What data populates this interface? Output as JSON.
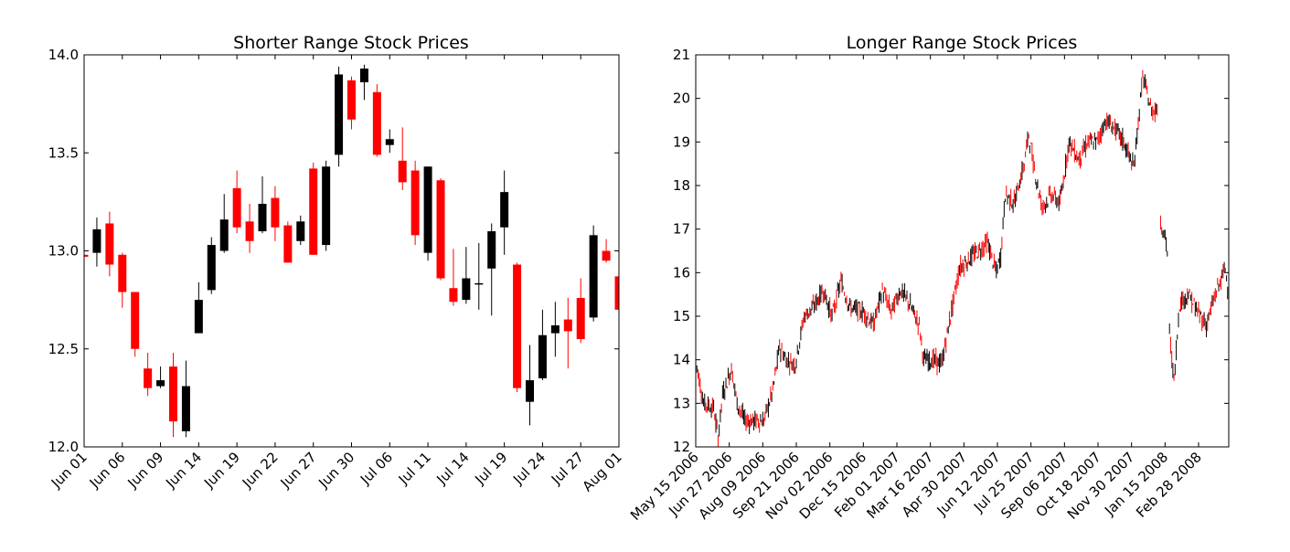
{
  "chart_data": [
    {
      "type": "candlestick",
      "title": "Shorter Range Stock Prices",
      "xlabel": "",
      "ylabel": "",
      "ylim": [
        12.0,
        14.0
      ],
      "xlim": [
        0,
        42
      ],
      "yticks": [
        "12.0",
        "12.5",
        "13.0",
        "13.5",
        "14.0"
      ],
      "ytick_values": [
        12.0,
        12.5,
        13.0,
        13.5,
        14.0
      ],
      "xticks": [
        "Jun 01",
        "Jun 06",
        "Jun 09",
        "Jun 14",
        "Jun 19",
        "Jun 22",
        "Jun 27",
        "Jun 30",
        "Jul 06",
        "Jul 11",
        "Jul 14",
        "Jul 19",
        "Jul 24",
        "Jul 27",
        "Aug 01"
      ],
      "xtick_values": [
        0,
        3,
        6,
        9,
        12,
        15,
        18,
        21,
        24,
        27,
        30,
        33,
        36,
        39,
        42
      ],
      "colors": {
        "up": "#000000",
        "down": "#ff0000"
      },
      "ohlc": [
        [
          12.98,
          12.99,
          12.97,
          12.97
        ],
        [
          12.99,
          13.17,
          12.92,
          13.11
        ],
        [
          13.14,
          13.2,
          12.87,
          12.93
        ],
        [
          12.98,
          12.99,
          12.71,
          12.79
        ],
        [
          12.79,
          12.79,
          12.46,
          12.5
        ],
        [
          12.4,
          12.48,
          12.26,
          12.3
        ],
        [
          12.31,
          12.41,
          12.3,
          12.34
        ],
        [
          12.41,
          12.48,
          12.05,
          12.13
        ],
        [
          12.08,
          12.44,
          12.05,
          12.31
        ],
        [
          12.58,
          12.84,
          12.58,
          12.75
        ],
        [
          12.8,
          13.07,
          12.78,
          13.03
        ],
        [
          13.0,
          13.29,
          12.99,
          13.16
        ],
        [
          13.32,
          13.41,
          13.09,
          13.12
        ],
        [
          13.15,
          13.24,
          12.99,
          13.05
        ],
        [
          13.1,
          13.38,
          13.09,
          13.24
        ],
        [
          13.27,
          13.33,
          13.05,
          13.12
        ],
        [
          13.13,
          13.15,
          12.94,
          12.94
        ],
        [
          13.05,
          13.18,
          13.03,
          13.15
        ],
        [
          13.42,
          13.45,
          12.98,
          12.98
        ],
        [
          13.03,
          13.46,
          13.0,
          13.43
        ],
        [
          13.49,
          13.94,
          13.43,
          13.9
        ],
        [
          13.87,
          13.89,
          13.62,
          13.67
        ],
        [
          13.86,
          13.95,
          13.77,
          13.93
        ],
        [
          13.81,
          13.85,
          13.48,
          13.49
        ],
        [
          13.54,
          13.62,
          13.5,
          13.57
        ],
        [
          13.46,
          13.63,
          13.31,
          13.35
        ],
        [
          13.41,
          13.46,
          13.03,
          13.08
        ],
        [
          12.99,
          13.43,
          12.95,
          13.43
        ],
        [
          13.36,
          13.37,
          12.85,
          12.86
        ],
        [
          12.81,
          13.01,
          12.72,
          12.74
        ],
        [
          12.75,
          13.02,
          12.73,
          12.86
        ],
        [
          12.83,
          13.04,
          12.7,
          12.835
        ],
        [
          12.91,
          13.14,
          12.67,
          13.1
        ],
        [
          13.12,
          13.41,
          12.98,
          13.3
        ],
        [
          12.93,
          12.94,
          12.28,
          12.3
        ],
        [
          12.23,
          12.52,
          12.11,
          12.34
        ],
        [
          12.35,
          12.7,
          12.34,
          12.57
        ],
        [
          12.58,
          12.74,
          12.46,
          12.62
        ],
        [
          12.65,
          12.76,
          12.4,
          12.59
        ],
        [
          12.76,
          12.86,
          12.53,
          12.55
        ],
        [
          12.66,
          13.13,
          12.64,
          13.08
        ],
        [
          13.0,
          13.06,
          12.94,
          12.95
        ],
        [
          12.87,
          12.9,
          12.7,
          12.7
        ]
      ]
    },
    {
      "type": "candlestick",
      "title": "Longer Range Stock Prices",
      "xlabel": "",
      "ylabel": "",
      "ylim": [
        12,
        21
      ],
      "xlim": [
        0,
        477
      ],
      "yticks": [
        "12",
        "13",
        "14",
        "15",
        "16",
        "17",
        "18",
        "19",
        "20",
        "21"
      ],
      "ytick_values": [
        12,
        13,
        14,
        15,
        16,
        17,
        18,
        19,
        20,
        21
      ],
      "xticks": [
        "May 15 2006",
        "Jun 27 2006",
        "Aug 09 2006",
        "Sep 21 2006",
        "Nov 02 2006",
        "Dec 15 2006",
        "Feb 01 2007",
        "Mar 16 2007",
        "Apr 30 2007",
        "Jun 12 2007",
        "Jul 25 2007",
        "Sep 06 2007",
        "Oct 18 2007",
        "Nov 30 2007",
        "Jan 15 2008",
        "Feb 28 2008"
      ],
      "xtick_values": [
        0,
        30,
        60,
        90,
        120,
        150,
        180,
        210,
        240,
        270,
        300,
        330,
        360,
        390,
        420,
        450
      ],
      "colors": {
        "up": "#000000",
        "down": "#ff0000"
      },
      "close_series": [
        [
          0,
          14.0
        ],
        [
          7,
          13.0
        ],
        [
          16,
          12.9
        ],
        [
          20,
          12.2
        ],
        [
          24,
          13.2
        ],
        [
          32,
          13.8
        ],
        [
          37,
          13.0
        ],
        [
          44,
          12.6
        ],
        [
          52,
          12.6
        ],
        [
          61,
          12.6
        ],
        [
          69,
          13.3
        ],
        [
          75,
          14.3
        ],
        [
          81,
          14.0
        ],
        [
          89,
          13.9
        ],
        [
          97,
          15.0
        ],
        [
          105,
          15.2
        ],
        [
          114,
          15.6
        ],
        [
          122,
          15.0
        ],
        [
          130,
          15.8
        ],
        [
          138,
          15.2
        ],
        [
          150,
          15.1
        ],
        [
          159,
          14.8
        ],
        [
          167,
          15.6
        ],
        [
          175,
          15.1
        ],
        [
          183,
          15.6
        ],
        [
          191,
          15.3
        ],
        [
          200,
          14.8
        ],
        [
          204,
          14.0
        ],
        [
          212,
          14.0
        ],
        [
          220,
          13.9
        ],
        [
          228,
          15.0
        ],
        [
          236,
          16.1
        ],
        [
          244,
          16.3
        ],
        [
          253,
          16.5
        ],
        [
          261,
          16.7
        ],
        [
          269,
          16.0
        ],
        [
          273,
          16.4
        ],
        [
          277,
          17.8
        ],
        [
          285,
          17.6
        ],
        [
          294,
          18.5
        ],
        [
          298,
          19.2
        ],
        [
          302,
          18.5
        ],
        [
          310,
          17.5
        ],
        [
          318,
          17.8
        ],
        [
          326,
          17.6
        ],
        [
          334,
          19.0
        ],
        [
          343,
          18.6
        ],
        [
          351,
          19.0
        ],
        [
          359,
          19.0
        ],
        [
          367,
          19.5
        ],
        [
          375,
          19.3
        ],
        [
          383,
          19.0
        ],
        [
          392,
          18.4
        ],
        [
          400,
          20.5
        ],
        [
          408,
          19.7
        ],
        [
          414,
          19.8
        ],
        [
          416,
          17.2
        ],
        [
          420,
          16.8
        ],
        [
          423,
          16.3
        ],
        [
          424,
          14.6
        ],
        [
          428,
          13.5
        ],
        [
          433,
          15.3
        ],
        [
          441,
          15.5
        ],
        [
          449,
          15.1
        ],
        [
          457,
          14.8
        ],
        [
          465,
          15.5
        ],
        [
          474,
          16.1
        ],
        [
          477,
          15.5
        ]
      ]
    }
  ]
}
